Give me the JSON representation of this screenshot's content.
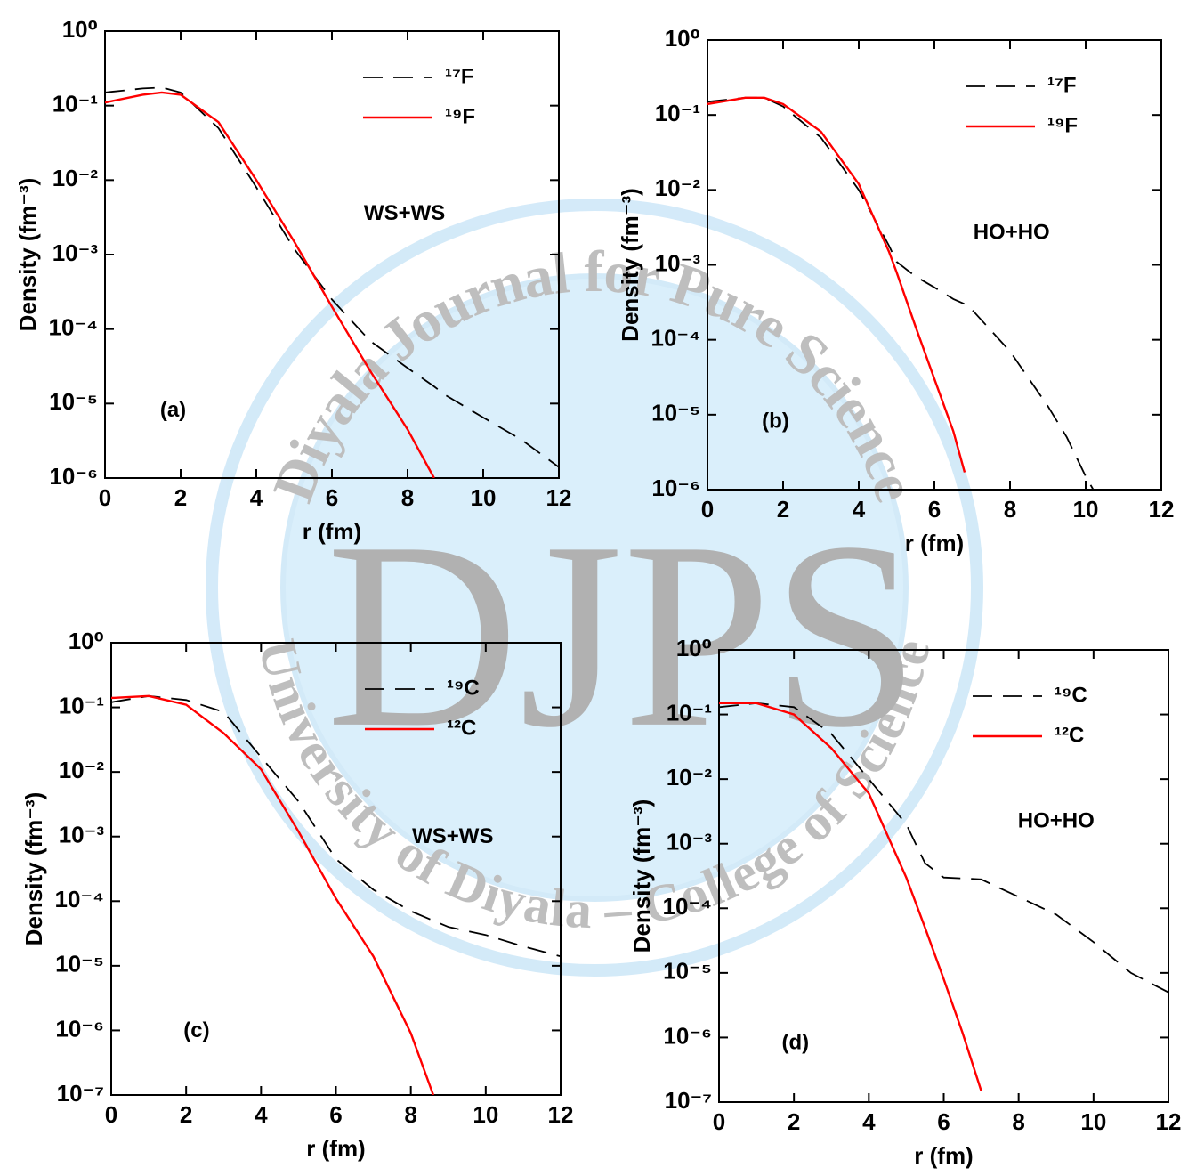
{
  "watermark": {
    "logo": "DJPS",
    "top": "Diyala Journal for Pure Science",
    "bottom": "University of Diyala – College of Science"
  },
  "chart_data": [
    {
      "type": "line",
      "log_y": true,
      "legend": "upper right",
      "xlabel": "r (fm)",
      "ylabel": "Density (fm⁻³)",
      "annotations": [
        "WS+WS",
        "(a)"
      ],
      "xlim": [
        0,
        12
      ],
      "xticks": [
        0,
        2,
        4,
        6,
        8,
        10,
        12
      ],
      "ylim": [
        1e-06,
        1
      ],
      "yticks": [
        {
          "value": 1e-06,
          "label": "10⁻⁶"
        },
        {
          "value": 1e-05,
          "label": "10⁻⁵"
        },
        {
          "value": 0.0001,
          "label": "10⁻⁴"
        },
        {
          "value": 0.001,
          "label": "10⁻³"
        },
        {
          "value": 0.01,
          "label": "10⁻²"
        },
        {
          "value": 0.1,
          "label": "10⁻¹"
        },
        {
          "value": 1,
          "label": "10⁰"
        }
      ],
      "x": [
        0,
        1,
        1.5,
        2,
        3,
        4,
        5,
        6,
        7,
        8,
        8.7,
        9,
        10,
        11,
        12
      ],
      "series": [
        {
          "name": "¹⁷F",
          "color": "#000000",
          "dash": true,
          "values": [
            0.15,
            0.17,
            0.175,
            0.15,
            0.05,
            0.008,
            0.0012,
            0.00025,
            7e-05,
            3e-05,
            1.7e-05,
            1.3e-05,
            6.5e-06,
            3.3e-06,
            1.4e-06
          ]
        },
        {
          "name": "¹⁹F",
          "color": "#ff0000",
          "dash": false,
          "values": [
            0.11,
            0.14,
            0.15,
            0.14,
            0.06,
            0.01,
            0.0015,
            0.0002,
            2.8e-05,
            4.5e-06,
            1e-06,
            null,
            null,
            null,
            null
          ]
        }
      ]
    },
    {
      "type": "line",
      "log_y": true,
      "legend": "upper right",
      "xlabel": "r (fm)",
      "ylabel": "Density (fm⁻³)",
      "annotations": [
        "HO+HO",
        "(b)"
      ],
      "xlim": [
        0,
        12
      ],
      "xticks": [
        0,
        2,
        4,
        6,
        8,
        10,
        12
      ],
      "ylim": [
        1e-06,
        1
      ],
      "yticks": [
        {
          "value": 1e-06,
          "label": "10⁻⁶"
        },
        {
          "value": 1e-05,
          "label": "10⁻⁵"
        },
        {
          "value": 0.0001,
          "label": "10⁻⁴"
        },
        {
          "value": 0.001,
          "label": "10⁻³"
        },
        {
          "value": 0.01,
          "label": "10⁻²"
        },
        {
          "value": 0.1,
          "label": "10⁻¹"
        },
        {
          "value": 1,
          "label": "10⁰"
        }
      ],
      "x": [
        0,
        1,
        1.5,
        2,
        3,
        4,
        4.8,
        5,
        5.5,
        6,
        6.5,
        6.8,
        7,
        8,
        9,
        9.5,
        10,
        10.2
      ],
      "series": [
        {
          "name": "¹⁷F",
          "color": "#000000",
          "dash": true,
          "values": [
            0.15,
            0.17,
            0.17,
            0.13,
            0.05,
            0.01,
            0.0018,
            0.0011,
            0.0007,
            0.0005,
            0.00035,
            0.0003,
            0.00025,
            7e-05,
            1.3e-05,
            5e-06,
            1.5e-06,
            1e-06
          ]
        },
        {
          "name": "¹⁹F",
          "color": "#ff0000",
          "dash": false,
          "values": [
            0.14,
            0.17,
            0.17,
            0.14,
            0.06,
            0.012,
            0.0015,
            0.0008,
            0.00015,
            3e-05,
            6e-06,
            1.7e-06,
            null,
            null,
            null,
            null,
            null,
            null
          ]
        }
      ]
    },
    {
      "type": "line",
      "log_y": true,
      "legend": "upper right",
      "xlabel": "r (fm)",
      "ylabel": "Density (fm⁻³)",
      "annotations": [
        "WS+WS",
        "(c)"
      ],
      "xlim": [
        0,
        12
      ],
      "xticks": [
        0,
        2,
        4,
        6,
        8,
        10,
        12
      ],
      "ylim": [
        1e-07,
        1
      ],
      "yticks": [
        {
          "value": 1e-07,
          "label": "10⁻⁷"
        },
        {
          "value": 1e-06,
          "label": "10⁻⁶"
        },
        {
          "value": 1e-05,
          "label": "10⁻⁵"
        },
        {
          "value": 0.0001,
          "label": "10⁻⁴"
        },
        {
          "value": 0.001,
          "label": "10⁻³"
        },
        {
          "value": 0.01,
          "label": "10⁻²"
        },
        {
          "value": 0.1,
          "label": "10⁻¹"
        },
        {
          "value": 1,
          "label": "10⁰"
        }
      ],
      "x": [
        0,
        1,
        2,
        3,
        4,
        5,
        6,
        7,
        8,
        8.6,
        9,
        10,
        11,
        12
      ],
      "series": [
        {
          "name": "¹⁹C",
          "color": "#000000",
          "dash": true,
          "values": [
            0.12,
            0.15,
            0.13,
            0.085,
            0.017,
            0.0035,
            0.00045,
            0.00015,
            7e-05,
            5e-05,
            4e-05,
            3e-05,
            2e-05,
            1.4e-05
          ]
        },
        {
          "name": "¹²C",
          "color": "#ff0000",
          "dash": false,
          "values": [
            0.14,
            0.15,
            0.11,
            0.04,
            0.011,
            0.0012,
            0.00011,
            1.4e-05,
            9e-07,
            1e-07,
            null,
            null,
            null,
            null
          ]
        }
      ]
    },
    {
      "type": "line",
      "log_y": true,
      "legend": "upper right",
      "xlabel": "r (fm)",
      "ylabel": "Density (fm⁻³)",
      "annotations": [
        "HO+HO",
        "(d)"
      ],
      "xlim": [
        0,
        12
      ],
      "xticks": [
        0,
        2,
        4,
        6,
        8,
        10,
        12
      ],
      "ylim": [
        1e-07,
        1
      ],
      "yticks": [
        {
          "value": 1e-07,
          "label": "10⁻⁷"
        },
        {
          "value": 1e-06,
          "label": "10⁻⁶"
        },
        {
          "value": 1e-05,
          "label": "10⁻⁵"
        },
        {
          "value": 0.0001,
          "label": "10⁻⁴"
        },
        {
          "value": 0.001,
          "label": "10⁻³"
        },
        {
          "value": 0.01,
          "label": "10⁻²"
        },
        {
          "value": 0.1,
          "label": "10⁻¹"
        },
        {
          "value": 1,
          "label": "10⁰"
        }
      ],
      "x": [
        0,
        1,
        2,
        3,
        4,
        5,
        5.5,
        6,
        6.5,
        7,
        8,
        9,
        10,
        11,
        12
      ],
      "series": [
        {
          "name": "¹⁹C",
          "color": "#000000",
          "dash": true,
          "values": [
            0.13,
            0.15,
            0.13,
            0.05,
            0.01,
            0.002,
            0.0005,
            0.0003,
            0.00029,
            0.00028,
            0.00015,
            8e-05,
            3e-05,
            1e-05,
            5e-06
          ]
        },
        {
          "name": "¹²C",
          "color": "#ff0000",
          "dash": false,
          "values": [
            0.15,
            0.15,
            0.1,
            0.03,
            0.006,
            0.0003,
            5e-05,
            8e-06,
            1.2e-06,
            1.5e-07,
            null,
            null,
            null,
            null,
            null
          ]
        }
      ]
    }
  ]
}
